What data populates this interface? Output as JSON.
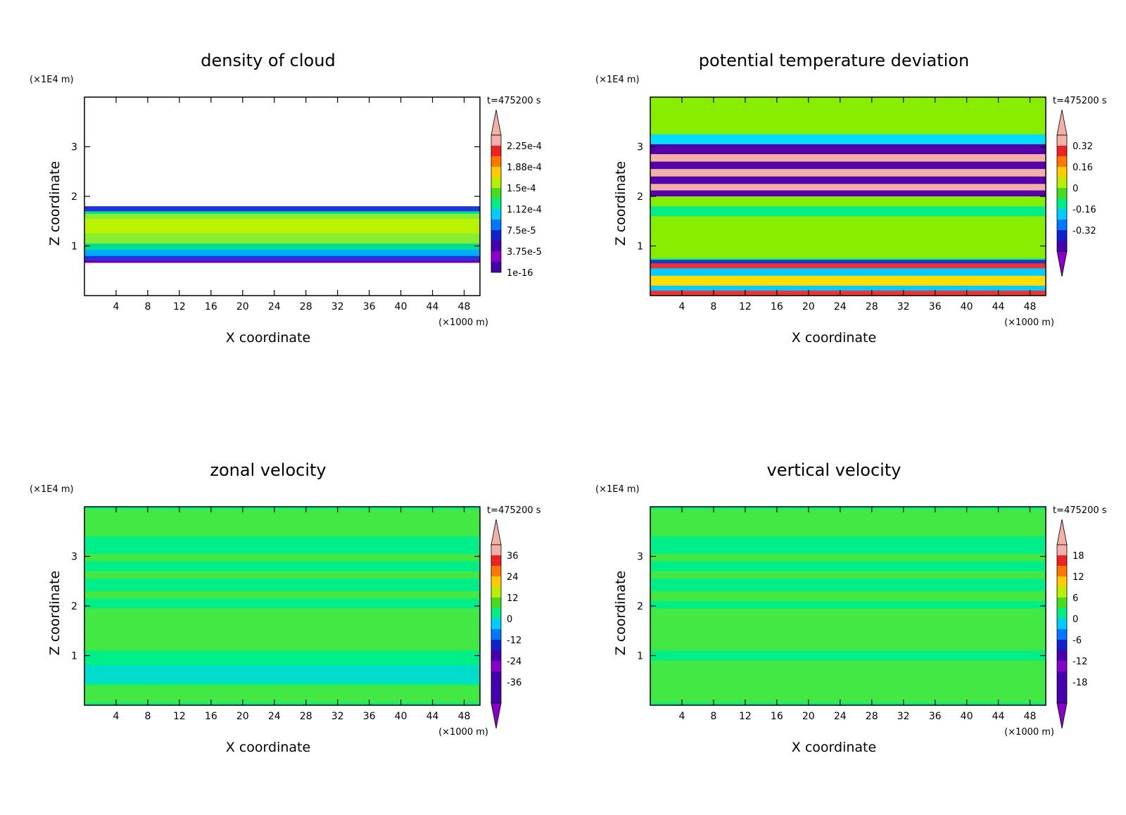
{
  "chart_data": [
    {
      "type": "heatmap",
      "title": "density of cloud",
      "time_label": "t=475200 s",
      "xlabel": "X coordinate",
      "ylabel": "Z coordinate",
      "x_unit": "(×1000 m)",
      "y_unit": "(×1E4 m)",
      "xlim": [
        0,
        50
      ],
      "ylim": [
        0,
        4
      ],
      "xticks": [
        "4",
        "8",
        "12",
        "16",
        "20",
        "24",
        "28",
        "32",
        "36",
        "40",
        "44",
        "48"
      ],
      "yticks": [
        "1",
        "2",
        "3"
      ],
      "colorbar_labels": [
        "2.25e-4",
        "1.88e-4",
        "1.5e-4",
        "1.12e-4",
        "7.5e-5",
        "3.75e-5",
        "1e-16"
      ],
      "background": "#ffffff",
      "bands": [
        {
          "z0": 0.66,
          "z1": 1.8,
          "color": "#00dd90"
        },
        {
          "z0": 1.05,
          "z1": 1.65,
          "color": "#88ee33"
        },
        {
          "z0": 1.25,
          "z1": 1.55,
          "color": "#bbf200"
        },
        {
          "z0": 0.66,
          "z1": 0.72,
          "color": "#6a00bb"
        },
        {
          "z0": 0.72,
          "z1": 0.8,
          "color": "#2233dd"
        },
        {
          "z0": 0.8,
          "z1": 0.92,
          "color": "#00aaff"
        },
        {
          "z0": 1.7,
          "z1": 1.8,
          "color": "#2233dd"
        }
      ]
    },
    {
      "type": "heatmap",
      "title": "potential temperature deviation",
      "time_label": "t=475200 s",
      "xlabel": "X coordinate",
      "ylabel": "Z coordinate",
      "x_unit": "(×1000 m)",
      "y_unit": "(×1E4 m)",
      "xlim": [
        0,
        50
      ],
      "ylim": [
        0,
        4
      ],
      "xticks": [
        "4",
        "8",
        "12",
        "16",
        "20",
        "24",
        "28",
        "32",
        "36",
        "40",
        "44",
        "48"
      ],
      "yticks": [
        "1",
        "2",
        "3"
      ],
      "colorbar_labels": [
        "0.32",
        "0.16",
        "0",
        "-0.16",
        "-0.32"
      ],
      "background": "#00ee88",
      "bands": [
        {
          "z0": 3.25,
          "z1": 4.0,
          "color": "#88ee00"
        },
        {
          "z0": 1.8,
          "z1": 2.0,
          "color": "#88ee00"
        },
        {
          "z0": 0.75,
          "z1": 1.6,
          "color": "#88ee00"
        },
        {
          "z0": 3.05,
          "z1": 3.25,
          "color": "#00ddff"
        },
        {
          "z0": 2.85,
          "z1": 3.05,
          "color": "#5500aa"
        },
        {
          "z0": 2.7,
          "z1": 2.85,
          "color": "#f4b0a8"
        },
        {
          "z0": 2.55,
          "z1": 2.7,
          "color": "#5500aa"
        },
        {
          "z0": 2.4,
          "z1": 2.55,
          "color": "#f4b0a8"
        },
        {
          "z0": 2.25,
          "z1": 2.4,
          "color": "#5500aa"
        },
        {
          "z0": 2.12,
          "z1": 2.25,
          "color": "#f4b0a8"
        },
        {
          "z0": 2.0,
          "z1": 2.12,
          "color": "#5500aa"
        },
        {
          "z0": 0.0,
          "z1": 0.7,
          "color": "#ee3333"
        },
        {
          "z0": 0.1,
          "z1": 0.55,
          "color": "#00ccff"
        },
        {
          "z0": 0.2,
          "z1": 0.4,
          "color": "#ffdd00"
        },
        {
          "z0": 0.65,
          "z1": 0.72,
          "color": "#2233cc"
        }
      ]
    },
    {
      "type": "heatmap",
      "title": "zonal velocity",
      "time_label": "t=475200 s",
      "xlabel": "X coordinate",
      "ylabel": "Z coordinate",
      "x_unit": "(×1000 m)",
      "y_unit": "(×1E4 m)",
      "xlim": [
        0,
        50
      ],
      "ylim": [
        0,
        4
      ],
      "xticks": [
        "4",
        "8",
        "12",
        "16",
        "20",
        "24",
        "28",
        "32",
        "36",
        "40",
        "44",
        "48"
      ],
      "yticks": [
        "1",
        "2",
        "3"
      ],
      "colorbar_labels": [
        "36",
        "24",
        "12",
        "0",
        "-12",
        "-24",
        "-36"
      ],
      "background": "#00ee88",
      "bands": [
        {
          "z0": 3.4,
          "z1": 3.95,
          "color": "#44e844"
        },
        {
          "z0": 2.9,
          "z1": 3.05,
          "color": "#44e844"
        },
        {
          "z0": 2.55,
          "z1": 2.7,
          "color": "#44e844"
        },
        {
          "z0": 2.15,
          "z1": 2.3,
          "color": "#44e844"
        },
        {
          "z0": 1.1,
          "z1": 1.95,
          "color": "#44e844"
        },
        {
          "z0": 0.05,
          "z1": 0.4,
          "color": "#44e844"
        },
        {
          "z0": 0.45,
          "z1": 0.8,
          "color": "#00ddcc"
        }
      ]
    },
    {
      "type": "heatmap",
      "title": "vertical velocity",
      "time_label": "t=475200 s",
      "xlabel": "X coordinate",
      "ylabel": "Z coordinate",
      "x_unit": "(×1000 m)",
      "y_unit": "(×1E4 m)",
      "xlim": [
        0,
        50
      ],
      "ylim": [
        0,
        4
      ],
      "xticks": [
        "4",
        "8",
        "12",
        "16",
        "20",
        "24",
        "28",
        "32",
        "36",
        "40",
        "44",
        "48"
      ],
      "yticks": [
        "1",
        "2",
        "3"
      ],
      "colorbar_labels": [
        "18",
        "12",
        "6",
        "0",
        "-6",
        "-12",
        "-18"
      ],
      "background": "#00ee88",
      "bands": [
        {
          "z0": 3.4,
          "z1": 3.95,
          "color": "#44e844"
        },
        {
          "z0": 2.9,
          "z1": 3.05,
          "color": "#44e844"
        },
        {
          "z0": 2.55,
          "z1": 2.7,
          "color": "#44e844"
        },
        {
          "z0": 2.1,
          "z1": 2.3,
          "color": "#44e844"
        },
        {
          "z0": 1.1,
          "z1": 1.95,
          "color": "#44e844"
        },
        {
          "z0": 0.05,
          "z1": 0.9,
          "color": "#44e844"
        }
      ]
    }
  ]
}
